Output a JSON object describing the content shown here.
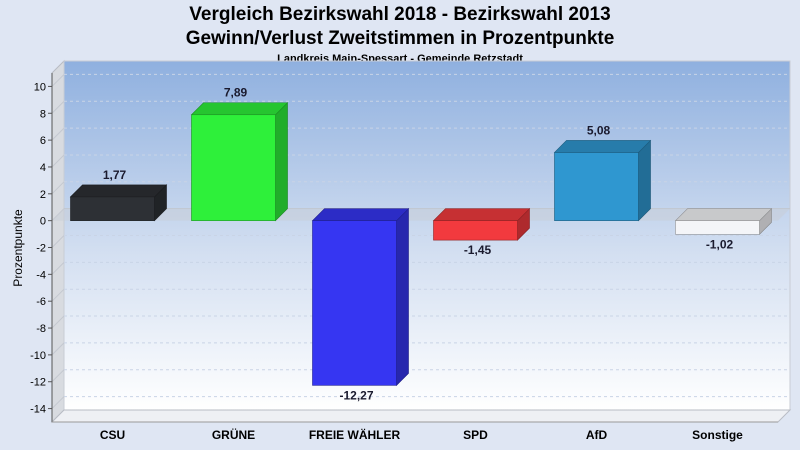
{
  "chart_data": {
    "type": "bar",
    "title": "Vergleich Bezirkswahl 2018 - Bezirkswahl 2013",
    "subtitle_line2": "Gewinn/Verlust Zweitstimmen in Prozentpunkte",
    "subtitle": "Landkreis Main-Spessart - Gemeinde Retzstadt",
    "ylabel": "Prozentpunkte",
    "xlabel": "",
    "ylim": [
      -15,
      11
    ],
    "yticks": [
      10,
      8,
      6,
      4,
      2,
      0,
      -2,
      -4,
      -6,
      -8,
      -10,
      -12,
      -14
    ],
    "categories": [
      "CSU",
      "GRÜNE",
      "FREIE WÄHLER",
      "SPD",
      "AfD",
      "Sonstige"
    ],
    "values": [
      1.77,
      7.89,
      -12.27,
      -1.45,
      5.08,
      -1.02
    ],
    "value_labels": [
      "1,77",
      "7,89",
      "-12,27",
      "-1,45",
      "5,08",
      "-1,02"
    ],
    "colors": [
      "#2d3035",
      "#2ef03a",
      "#3636f2",
      "#f23a3e",
      "#2f97d0",
      "#f4f5f8"
    ]
  }
}
